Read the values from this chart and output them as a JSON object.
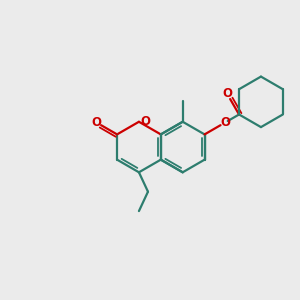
{
  "bg_color": "#ebebeb",
  "bond_color": "#2d7d6e",
  "hetero_color": "#cc0000",
  "lw": 1.6,
  "dlw": 1.3,
  "figsize": [
    3.0,
    3.0
  ],
  "dpi": 100,
  "xlim": [
    0,
    10
  ],
  "ylim": [
    0,
    10
  ]
}
